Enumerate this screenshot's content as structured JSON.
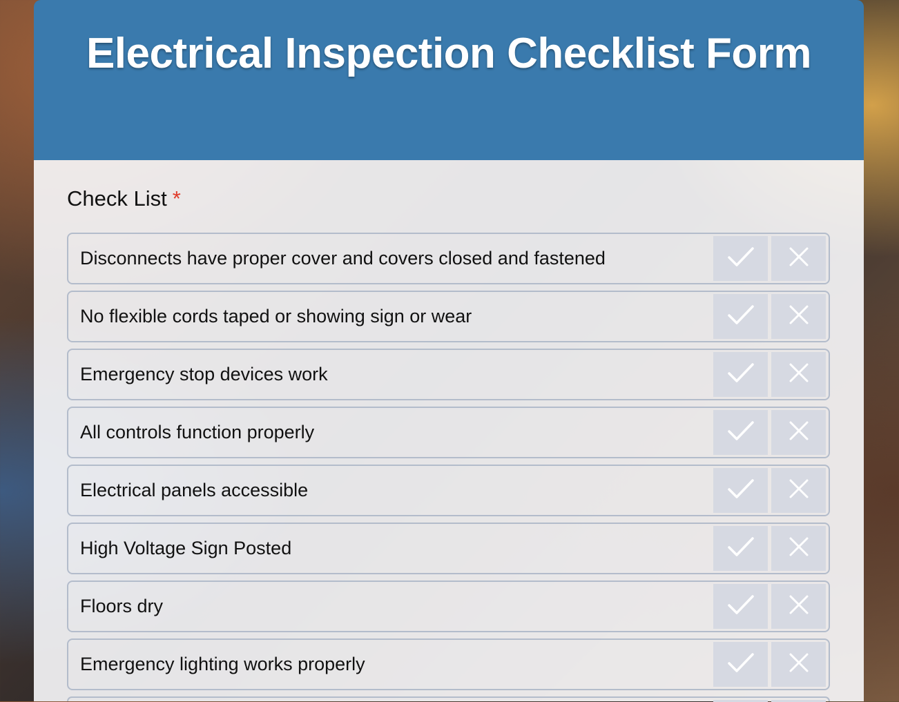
{
  "form": {
    "title": "Electrical Inspection Checklist Form"
  },
  "checklist": {
    "label": "Check List",
    "required_mark": "*",
    "items": [
      {
        "text": "Disconnects have proper cover and covers closed and fastened"
      },
      {
        "text": "No flexible cords taped or showing sign or wear"
      },
      {
        "text": "Emergency stop devices work"
      },
      {
        "text": "All controls function properly"
      },
      {
        "text": "Electrical panels accessible"
      },
      {
        "text": "High Voltage Sign Posted"
      },
      {
        "text": "Floors dry"
      },
      {
        "text": "Emergency lighting works properly"
      },
      {
        "text": ""
      }
    ],
    "icons": {
      "yes": "check-icon",
      "no": "x-icon"
    },
    "colors": {
      "header": "#3a7aad",
      "button": "#d6d9e2",
      "required": "#e03a2a"
    }
  }
}
